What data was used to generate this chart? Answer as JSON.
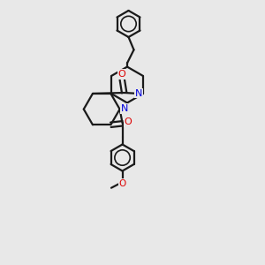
{
  "bg_color": "#e8e8e8",
  "bond_color": "#1a1a1a",
  "N_color": "#0000dd",
  "O_color": "#dd0000",
  "lw": 1.6,
  "fig_w": 3.0,
  "fig_h": 3.0,
  "dpi": 100,
  "fs": 7.0,
  "xlim": [
    0,
    10
  ],
  "ylim": [
    0,
    10
  ]
}
